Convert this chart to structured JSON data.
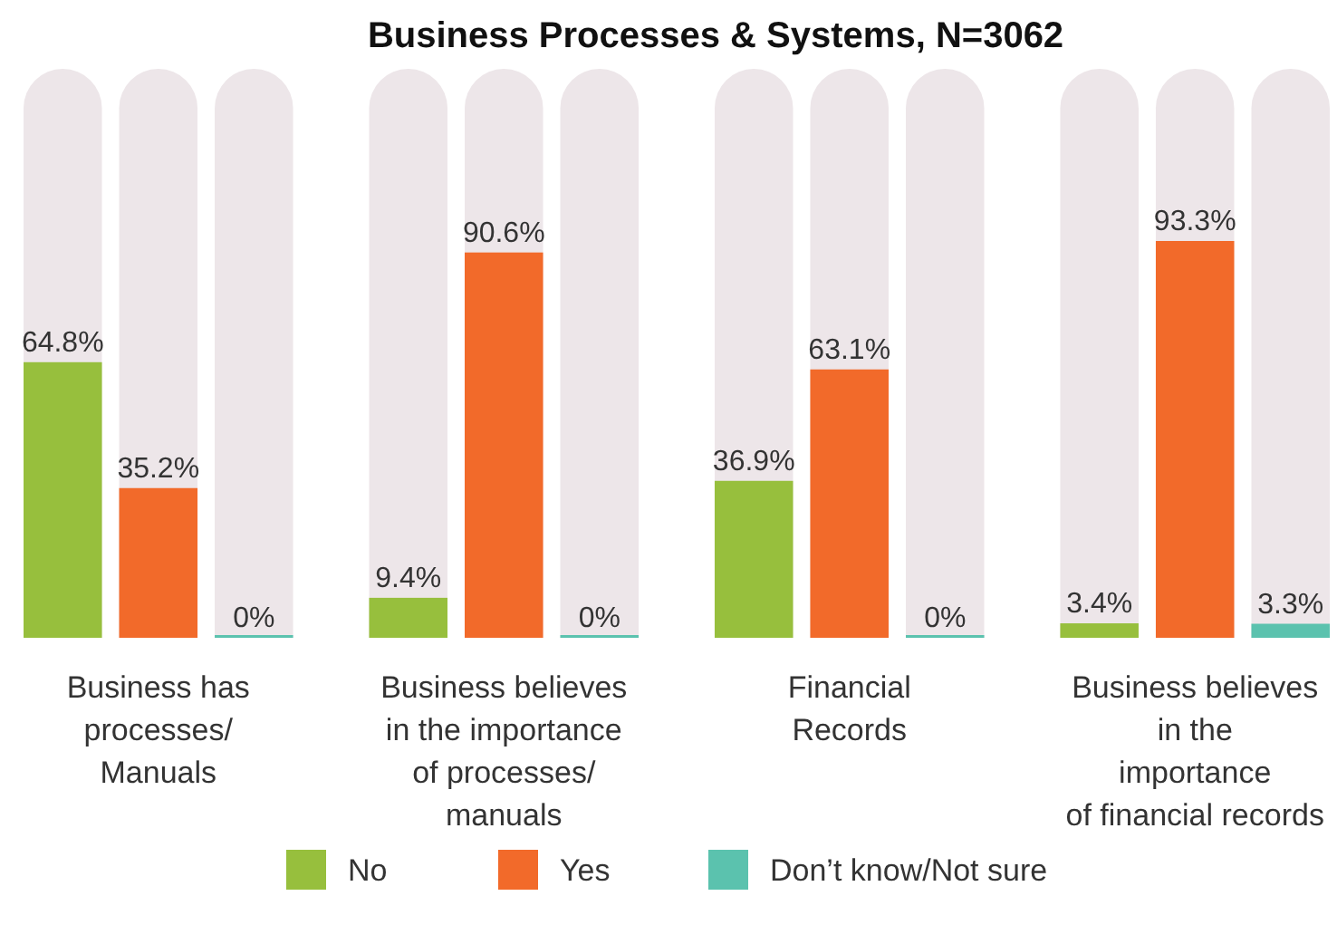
{
  "chart_data": {
    "type": "bar",
    "title": "Business Processes & Systems, N=3062",
    "categories": [
      "Business has\nprocesses/\nManuals",
      "Business believes\nin the importance\nof processes/\nmanuals",
      "Financial\nRecords",
      "Business believes\nin the\nimportance\nof financial records"
    ],
    "series": [
      {
        "name": "No",
        "color": "#97bf3d",
        "values": [
          64.8,
          9.4,
          36.9,
          3.4
        ],
        "value_labels": [
          "64.8%",
          "9.4%",
          "36.9%",
          "3.4%"
        ]
      },
      {
        "name": "Yes",
        "color": "#f26a2a",
        "values": [
          35.2,
          90.6,
          63.1,
          93.3
        ],
        "value_labels": [
          "35.2%",
          "90.6%",
          "63.1%",
          "93.3%"
        ]
      },
      {
        "name": "Don’t know/Not sure",
        "color": "#5bc2ae",
        "values": [
          0,
          0,
          0,
          3.3
        ],
        "value_labels": [
          "0%",
          "0%",
          "0%",
          "3.3%"
        ]
      }
    ],
    "legend": "bottom"
  }
}
